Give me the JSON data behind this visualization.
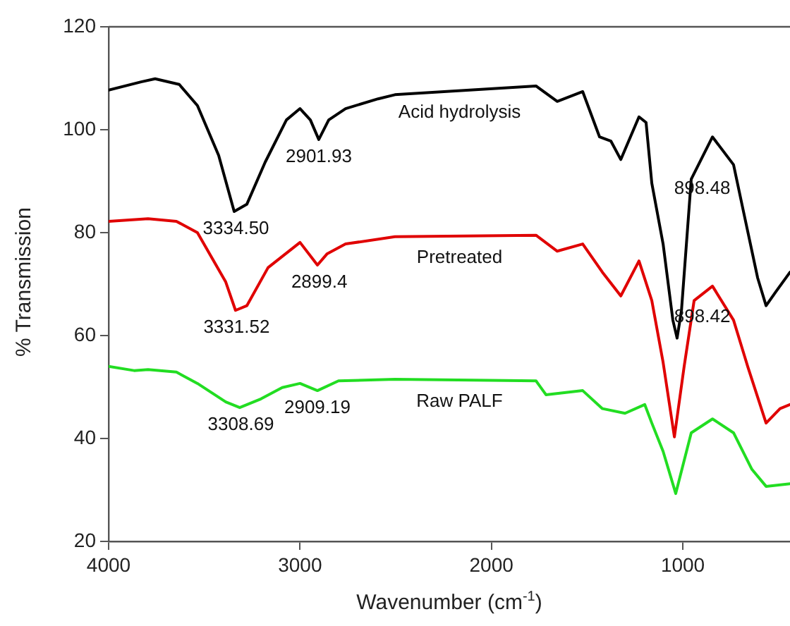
{
  "chart_data": {
    "type": "line",
    "xlabel": "Wavenumber (cm$^{-1}$)",
    "ylabel": "% Transmission",
    "xlim": [
      4000,
      440
    ],
    "xticks": [
      4000,
      3000,
      2000,
      1000
    ],
    "ylim": [
      20,
      120
    ],
    "yticks": [
      20,
      40,
      60,
      80,
      100,
      120
    ],
    "grid": false,
    "legend": false,
    "marker": "none",
    "line_style": "solid",
    "series": [
      {
        "name": "Acid hydrolysis",
        "color": "#000000",
        "x": [
          4000,
          3830,
          3757,
          3631,
          3536,
          3425,
          3344,
          3278,
          3182,
          3071,
          3000,
          2946,
          2902,
          2850,
          2762,
          2592,
          2504,
          1767,
          1656,
          1523,
          1435,
          1376,
          1324,
          1229,
          1192,
          1162,
          1103,
          1052,
          1030,
          1007,
          956,
          845,
          735,
          683,
          609,
          565,
          514,
          440
        ],
        "values": [
          107.7,
          109.3,
          109.9,
          108.8,
          104.7,
          95,
          84.1,
          85.5,
          93.7,
          101.9,
          104.1,
          101.9,
          98.1,
          101.9,
          104.1,
          106,
          106.8,
          108.5,
          105.5,
          107.4,
          98.6,
          97.8,
          94.2,
          102.5,
          101.4,
          89.6,
          77.8,
          63,
          59.5,
          64.9,
          90.4,
          98.6,
          93.2,
          84.1,
          71.2,
          65.8,
          68.5,
          72.3
        ]
      },
      {
        "name": "Pretreated",
        "color": "#e00000",
        "x": [
          4000,
          3794,
          3646,
          3536,
          3388,
          3337,
          3278,
          3167,
          3000,
          2909,
          2858,
          2762,
          2504,
          1767,
          1656,
          1523,
          1420,
          1324,
          1229,
          1162,
          1103,
          1044,
          993,
          941,
          845,
          735,
          661,
          565,
          492,
          440
        ],
        "values": [
          82.2,
          82.7,
          82.2,
          80,
          70.4,
          64.9,
          65.8,
          73.2,
          78.1,
          73.7,
          75.9,
          77.8,
          79.2,
          79.5,
          76.4,
          77.8,
          72.3,
          67.7,
          74.5,
          66.8,
          54.8,
          40.3,
          54,
          66.8,
          69.6,
          63,
          54,
          43,
          45.8,
          46.6
        ]
      },
      {
        "name": "Raw PALF",
        "color": "#22dd22",
        "x": [
          4000,
          3867,
          3794,
          3646,
          3536,
          3388,
          3315,
          3204,
          3093,
          3000,
          2909,
          2799,
          2504,
          1767,
          1715,
          1523,
          1420,
          1302,
          1199,
          1162,
          1103,
          1037,
          956,
          845,
          735,
          639,
          565,
          440
        ],
        "values": [
          54,
          53.2,
          53.4,
          52.9,
          50.7,
          47.1,
          46,
          47.7,
          49.9,
          50.7,
          49.3,
          51.2,
          51.5,
          51.2,
          48.5,
          49.3,
          45.8,
          44.9,
          46.6,
          43,
          37.5,
          29.3,
          41.1,
          43.8,
          41.1,
          34,
          30.7,
          31.2
        ]
      }
    ],
    "annotations": [
      {
        "text": "3334.50",
        "x": 3334.5,
        "y": 84.1
      },
      {
        "text": "2901.93",
        "x": 2901.93,
        "y": 98.1
      },
      {
        "text": "3331.52",
        "x": 3331.52,
        "y": 65
      },
      {
        "text": "2899.4",
        "x": 2899.4,
        "y": 73.7
      },
      {
        "text": "3308.69",
        "x": 3308.69,
        "y": 46
      },
      {
        "text": "2909.19",
        "x": 2909.19,
        "y": 49.3
      },
      {
        "text": "898.48",
        "x": 898.48,
        "y": 92
      },
      {
        "text": "898.42",
        "x": 898.42,
        "y": 67
      }
    ]
  }
}
